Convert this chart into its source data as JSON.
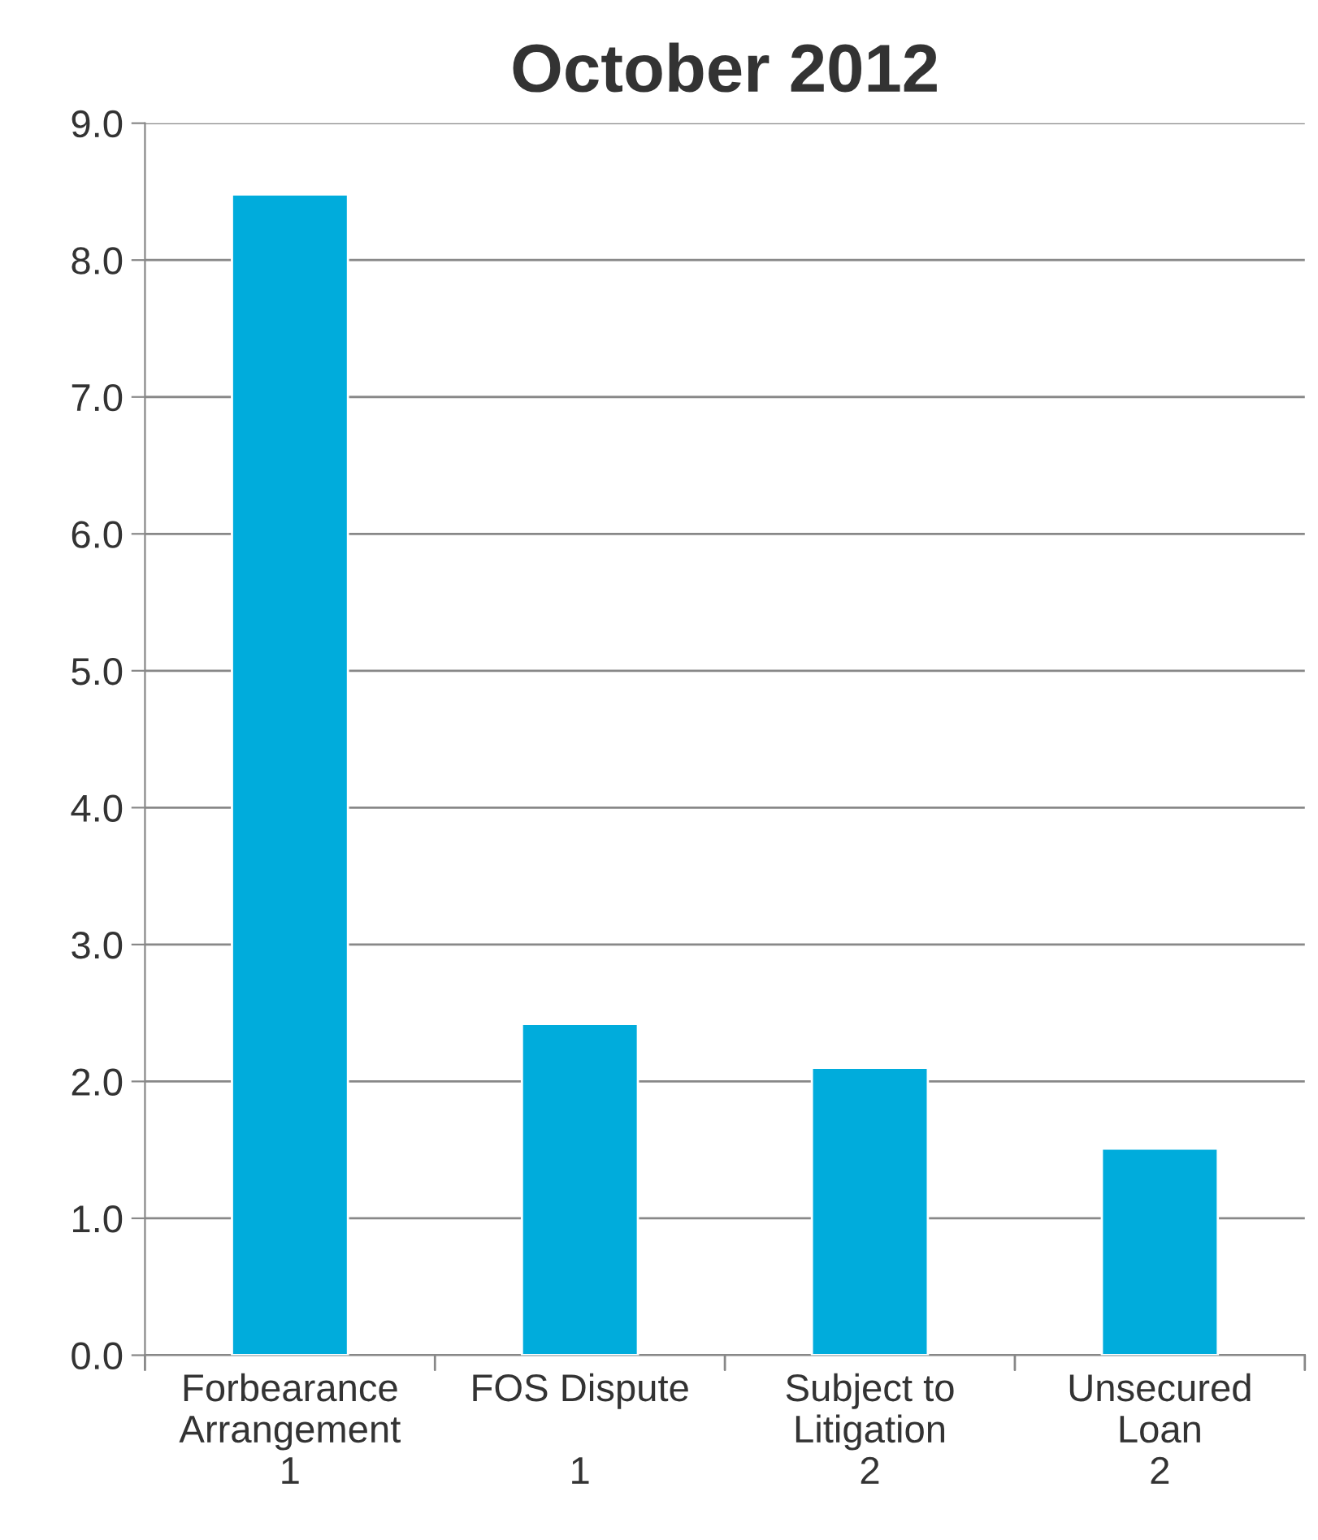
{
  "chart_data": {
    "type": "bar",
    "title": "October 2012",
    "categories": [
      "Forbearance\nArrangement\n1",
      "FOS Dispute\n\n1",
      "Subject to\nLitigation\n2",
      "Unsecured\nLoan\n2"
    ],
    "values": [
      8.48,
      2.42,
      2.1,
      1.51
    ],
    "color": "#00acdc",
    "ylim": [
      0,
      9
    ],
    "yticks": [
      {
        "value": 0,
        "label": "0.0"
      },
      {
        "value": 1,
        "label": "1.0"
      },
      {
        "value": 2,
        "label": "2.0"
      },
      {
        "value": 3,
        "label": "3.0"
      },
      {
        "value": 4,
        "label": "4.0"
      },
      {
        "value": 5,
        "label": "5.0"
      },
      {
        "value": 6,
        "label": "6.0"
      },
      {
        "value": 7,
        "label": "7.0"
      },
      {
        "value": 8,
        "label": "8.0"
      },
      {
        "value": 9,
        "label": "9.0"
      }
    ],
    "grid": "y"
  }
}
